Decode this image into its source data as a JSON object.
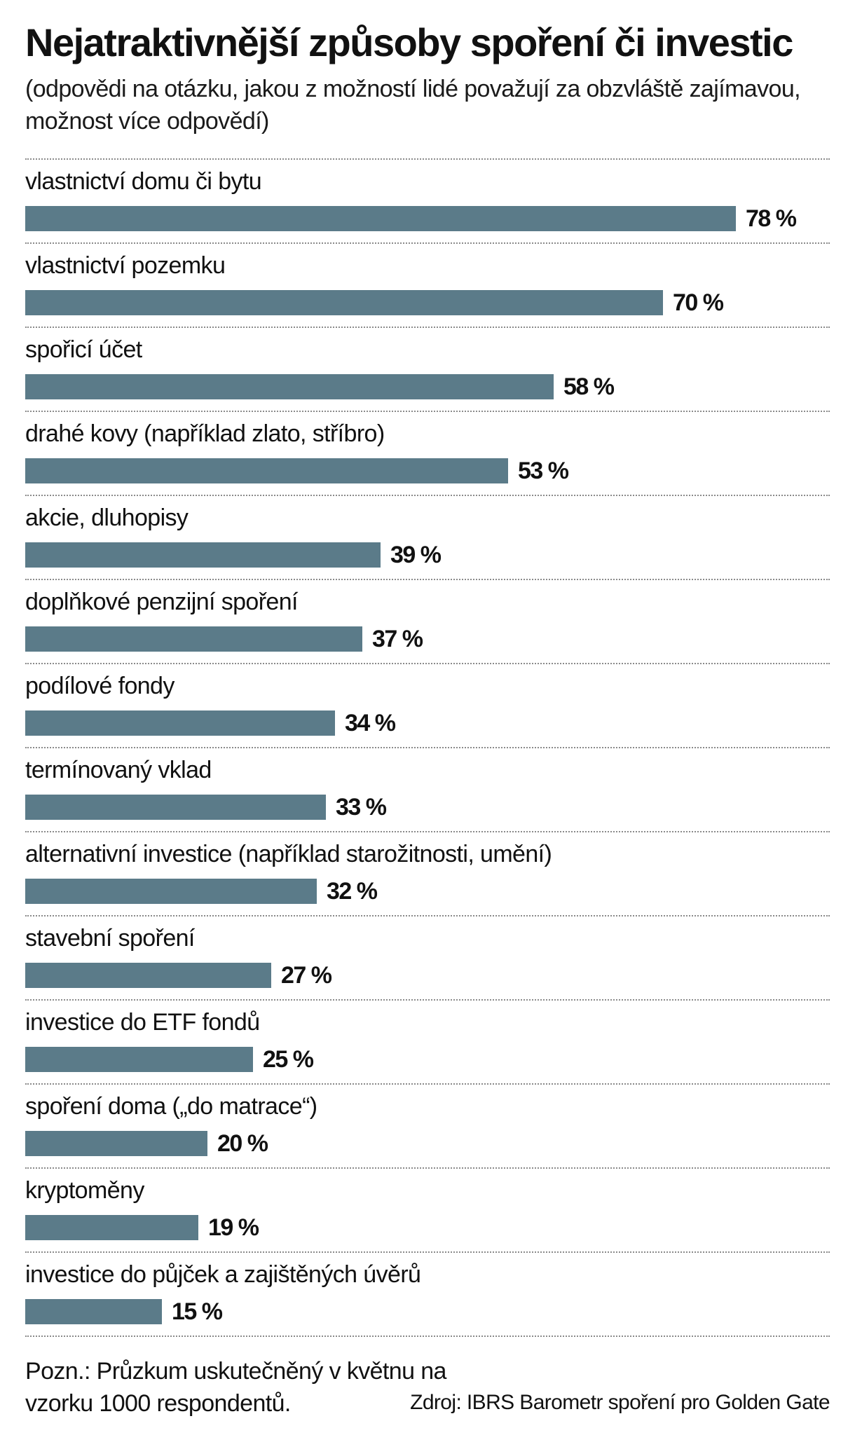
{
  "title": "Nejatraktivnější způsoby spoření či investic",
  "subtitle": "(odpovědi na otázku, jakou z možností lidé považují za obzvláště zajímavou, možnost více odpovědí)",
  "colors": {
    "bar": "#5b7b89",
    "text": "#111111",
    "separator": "#8a8a8a"
  },
  "chart_data": {
    "type": "bar",
    "orientation": "horizontal",
    "title": "Nejatraktivnější způsoby spoření či investic",
    "unit": "%",
    "xlim": [
      0,
      100
    ],
    "categories": [
      "vlastnictví domu či bytu",
      "vlastnictví pozemku",
      "spořicí účet",
      "drahé kovy (například zlato, stříbro)",
      "akcie, dluhopisy",
      "doplňkové penzijní spoření",
      "podílové fondy",
      "termínovaný vklad",
      "alternativní investice (například starožitnosti, umění)",
      "stavební spoření",
      "investice do ETF fondů",
      "spoření doma („do matrace“)",
      "kryptoměny",
      "investice do půjček a zajištěných úvěrů"
    ],
    "values": [
      78,
      70,
      58,
      53,
      39,
      37,
      34,
      33,
      32,
      27,
      25,
      20,
      19,
      15
    ],
    "value_labels": [
      "78 %",
      "70 %",
      "58 %",
      "53 %",
      "39 %",
      "37 %",
      "34 %",
      "33 %",
      "32 %",
      "27 %",
      "25 %",
      "20 %",
      "19 %",
      "15 %"
    ]
  },
  "footer": {
    "note": "Pozn.: Průzkum uskutečněný v květnu na vzorku 1000 respondentů.",
    "source": "Zdroj: IBRS Barometr spoření pro Golden Gate"
  }
}
